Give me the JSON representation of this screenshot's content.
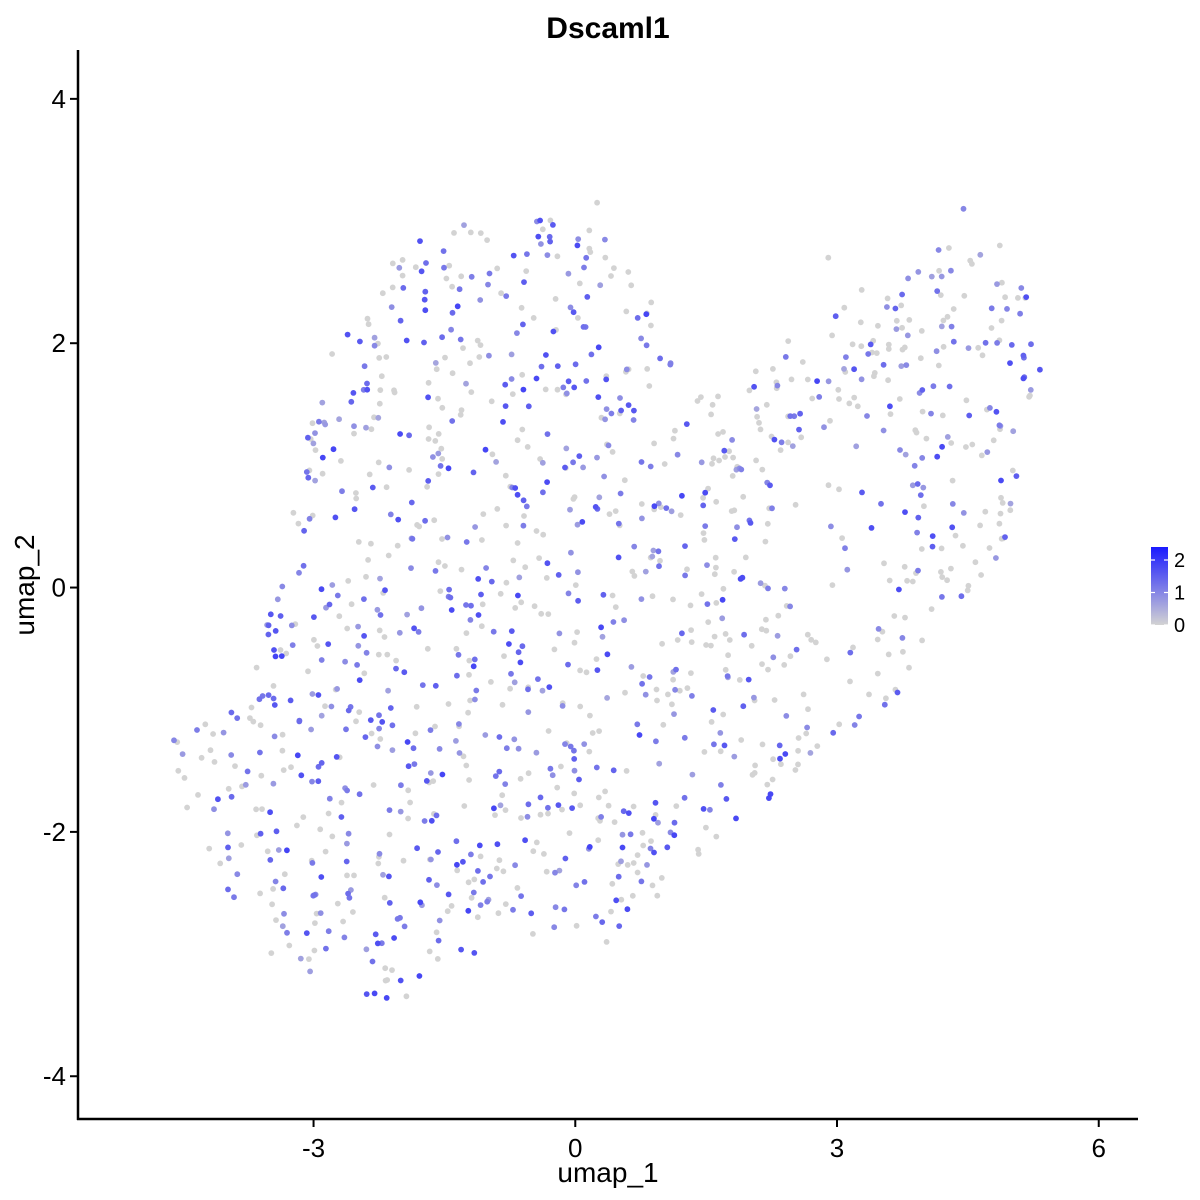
{
  "chart_data": {
    "type": "scatter",
    "title": "Dscaml1",
    "xlabel": "umap_1",
    "ylabel": "umap_2",
    "xlim": [
      -5.7,
      6.45
    ],
    "ylim": [
      -4.35,
      4.4
    ],
    "xticks": [
      -3,
      0,
      3,
      6
    ],
    "yticks": [
      -4,
      -2,
      0,
      2,
      4
    ],
    "grid": false,
    "legend": {
      "placement": "right",
      "type": "colorbar",
      "ticks": [
        0,
        1,
        2
      ],
      "range": [
        0,
        2.4
      ],
      "low_color": "#d3d3d3",
      "high_color": "#1a1aff"
    },
    "point_count": 1300,
    "seed": 17,
    "outline": [
      [
        -4.7,
        -1.3
      ],
      [
        -4.3,
        -1.9
      ],
      [
        -4.05,
        -2.6
      ],
      [
        -3.6,
        -3.0
      ],
      [
        -3.1,
        -3.15
      ],
      [
        -2.5,
        -3.35
      ],
      [
        -2.2,
        -3.5
      ],
      [
        -1.6,
        -3.2
      ],
      [
        -1.0,
        -3.0
      ],
      [
        -0.4,
        -2.95
      ],
      [
        0.2,
        -3.0
      ],
      [
        0.8,
        -2.7
      ],
      [
        1.3,
        -2.3
      ],
      [
        1.9,
        -1.9
      ],
      [
        2.4,
        -1.75
      ],
      [
        2.9,
        -1.2
      ],
      [
        3.3,
        -1.15
      ],
      [
        3.6,
        -1.0
      ],
      [
        4.0,
        -0.5
      ],
      [
        4.4,
        -0.2
      ],
      [
        4.8,
        0.2
      ],
      [
        5.1,
        0.6
      ],
      [
        5.3,
        1.0
      ],
      [
        5.3,
        1.5
      ],
      [
        5.35,
        2.0
      ],
      [
        5.3,
        2.5
      ],
      [
        5.0,
        2.75
      ],
      [
        4.6,
        2.9
      ],
      [
        4.4,
        3.1
      ],
      [
        4.0,
        2.6
      ],
      [
        3.5,
        2.5
      ],
      [
        3.1,
        2.4
      ],
      [
        2.7,
        2.1
      ],
      [
        2.3,
        2.0
      ],
      [
        1.9,
        1.85
      ],
      [
        1.6,
        1.6
      ],
      [
        1.2,
        1.5
      ],
      [
        1.0,
        2.6
      ],
      [
        0.5,
        2.75
      ],
      [
        0.25,
        3.15
      ],
      [
        -0.1,
        3.05
      ],
      [
        -0.6,
        3.05
      ],
      [
        -1.2,
        3.0
      ],
      [
        -1.7,
        2.9
      ],
      [
        -2.2,
        2.6
      ],
      [
        -2.7,
        2.1
      ],
      [
        -3.0,
        1.5
      ],
      [
        -3.2,
        0.8
      ],
      [
        -3.4,
        0.0
      ],
      [
        -3.7,
        -0.6
      ],
      [
        -4.1,
        -1.1
      ],
      [
        -4.4,
        -1.1
      ]
    ],
    "hole": [
      [
        2.3,
        0.4
      ],
      [
        3.0,
        -0.7
      ],
      [
        3.6,
        0.0
      ],
      [
        3.9,
        0.9
      ],
      [
        3.4,
        1.4
      ],
      [
        2.7,
        1.3
      ]
    ],
    "outlier_points": [
      [
        -4.6,
        -1.25
      ],
      [
        -4.55,
        -1.5
      ],
      [
        -4.45,
        -1.8
      ],
      [
        2.9,
        2.7
      ],
      [
        -1.0,
        2.48
      ],
      [
        0.25,
        3.15
      ],
      [
        4.45,
        3.1
      ]
    ]
  }
}
